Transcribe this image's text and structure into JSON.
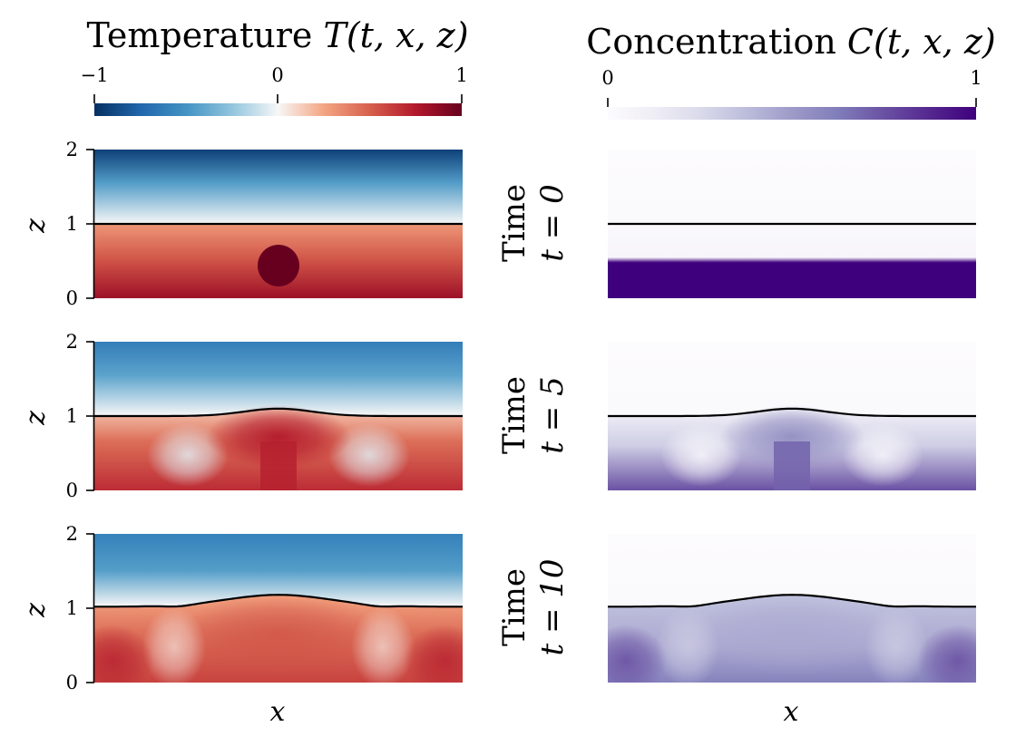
{
  "chart_data": {
    "type": "heatmap",
    "columns": [
      {
        "title_prefix": "Temperature ",
        "title_math": "T(t, x, z)",
        "colormap": "RdBu_r",
        "colorbar_range": [
          -1,
          1
        ],
        "colorbar_ticks": [
          "−1",
          "0",
          "1"
        ],
        "colors": [
          "#053061",
          "#2166ac",
          "#4393c3",
          "#92c5de",
          "#f7f7f7",
          "#f4a582",
          "#d6604d",
          "#b2182b",
          "#67001f"
        ]
      },
      {
        "title_prefix": "Concentration ",
        "title_math": "C(t, x, z)",
        "colormap": "Purples",
        "colorbar_range": [
          0,
          1
        ],
        "colorbar_ticks": [
          "0",
          "1"
        ],
        "colors": [
          "#fcfbfd",
          "#efedf5",
          "#dadaeb",
          "#bcbddc",
          "#9e9ac8",
          "#807dba",
          "#6a51a3",
          "#54278f",
          "#3f007d"
        ]
      }
    ],
    "rows": [
      {
        "label_top": "Time",
        "label_bottom": "t = 0",
        "time": 0
      },
      {
        "label_top": "Time",
        "label_bottom": "t = 5",
        "time": 5
      },
      {
        "label_top": "Time",
        "label_bottom": "t = 10",
        "time": 10
      }
    ],
    "xlabel": "x",
    "ylabel": "z",
    "ylim": [
      0,
      2
    ],
    "yticks": [
      "0",
      "1",
      "2"
    ],
    "interface_color": "#000000"
  }
}
